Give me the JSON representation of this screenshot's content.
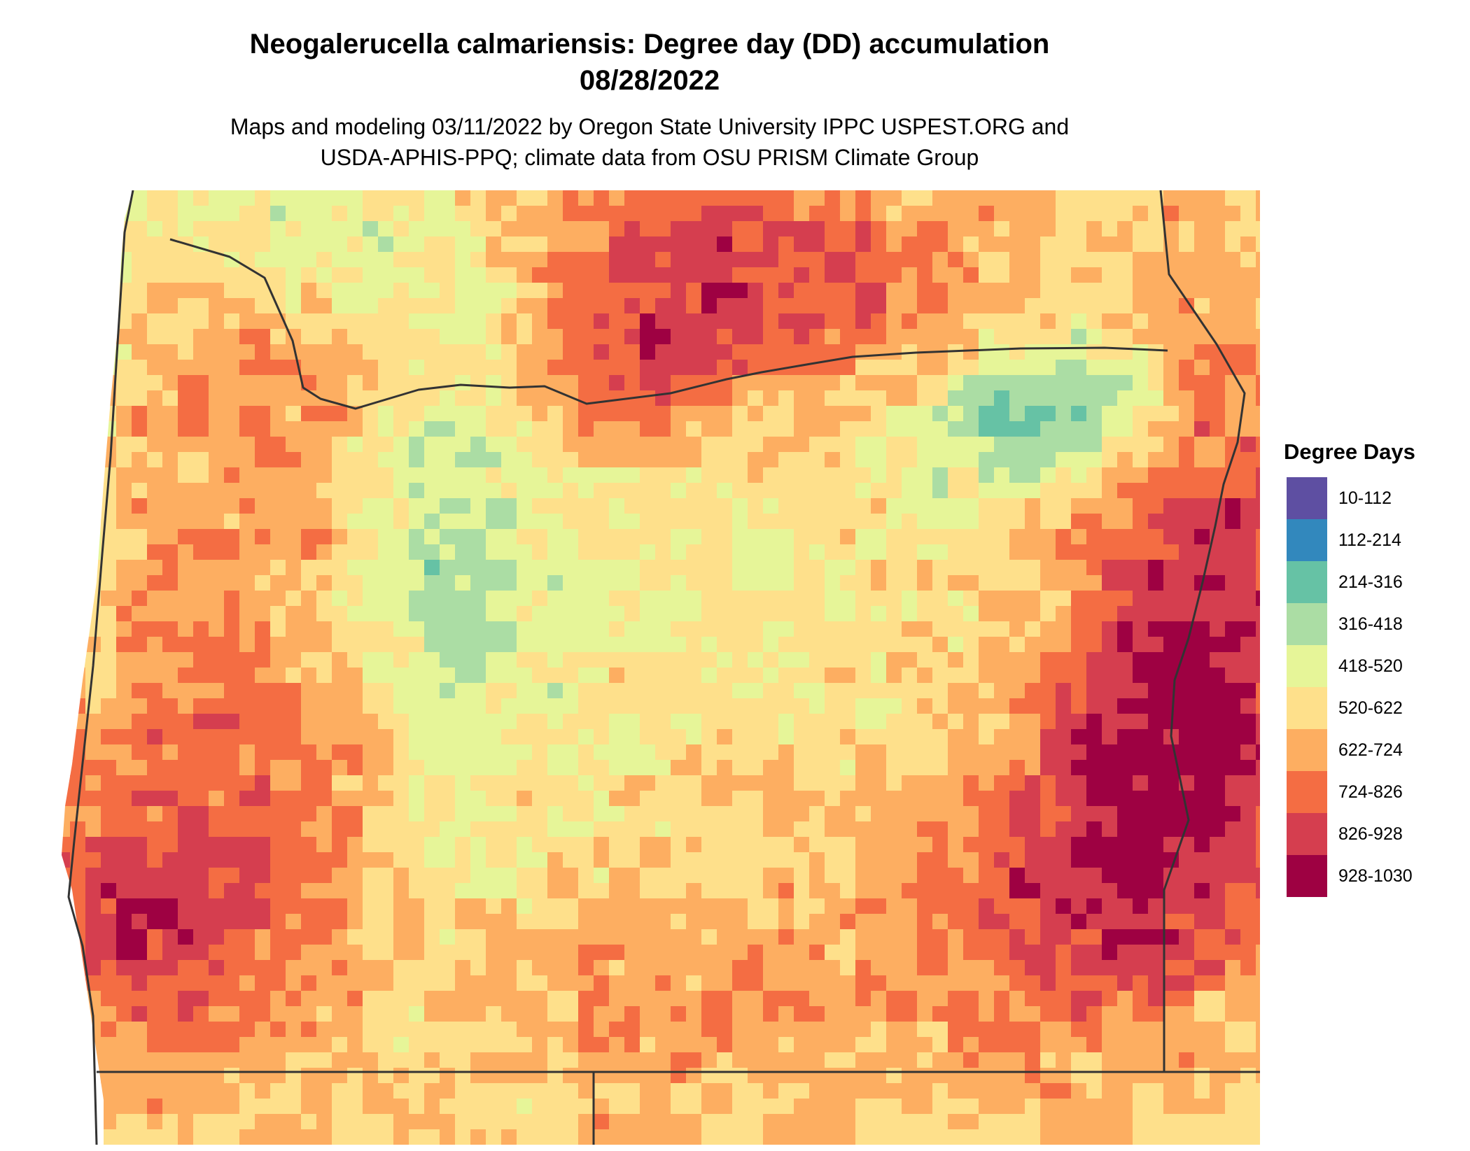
{
  "title": {
    "line1": "Neogalerucella calmariensis: Degree day (DD) accumulation",
    "line2": "08/28/2022"
  },
  "subtitle": {
    "line1": "Maps and modeling 03/11/2022 by Oregon State University IPPC USPEST.ORG and",
    "line2": "USDA-APHIS-PPQ; climate data from OSU PRISM Climate Group"
  },
  "legend": {
    "title": "Degree Days",
    "items": [
      {
        "label": "10-112",
        "color": "#5e4fa2"
      },
      {
        "label": "112-214",
        "color": "#3288bd"
      },
      {
        "label": "214-316",
        "color": "#66c2a5"
      },
      {
        "label": "316-418",
        "color": "#abdda4"
      },
      {
        "label": "418-520",
        "color": "#e6f598"
      },
      {
        "label": "520-622",
        "color": "#fee08b"
      },
      {
        "label": "622-724",
        "color": "#fdae61"
      },
      {
        "label": "724-826",
        "color": "#f46d43"
      },
      {
        "label": "826-928",
        "color": "#d53e4f"
      },
      {
        "label": "928-1030",
        "color": "#9e0142"
      }
    ]
  },
  "boundary_color": "#333333"
}
